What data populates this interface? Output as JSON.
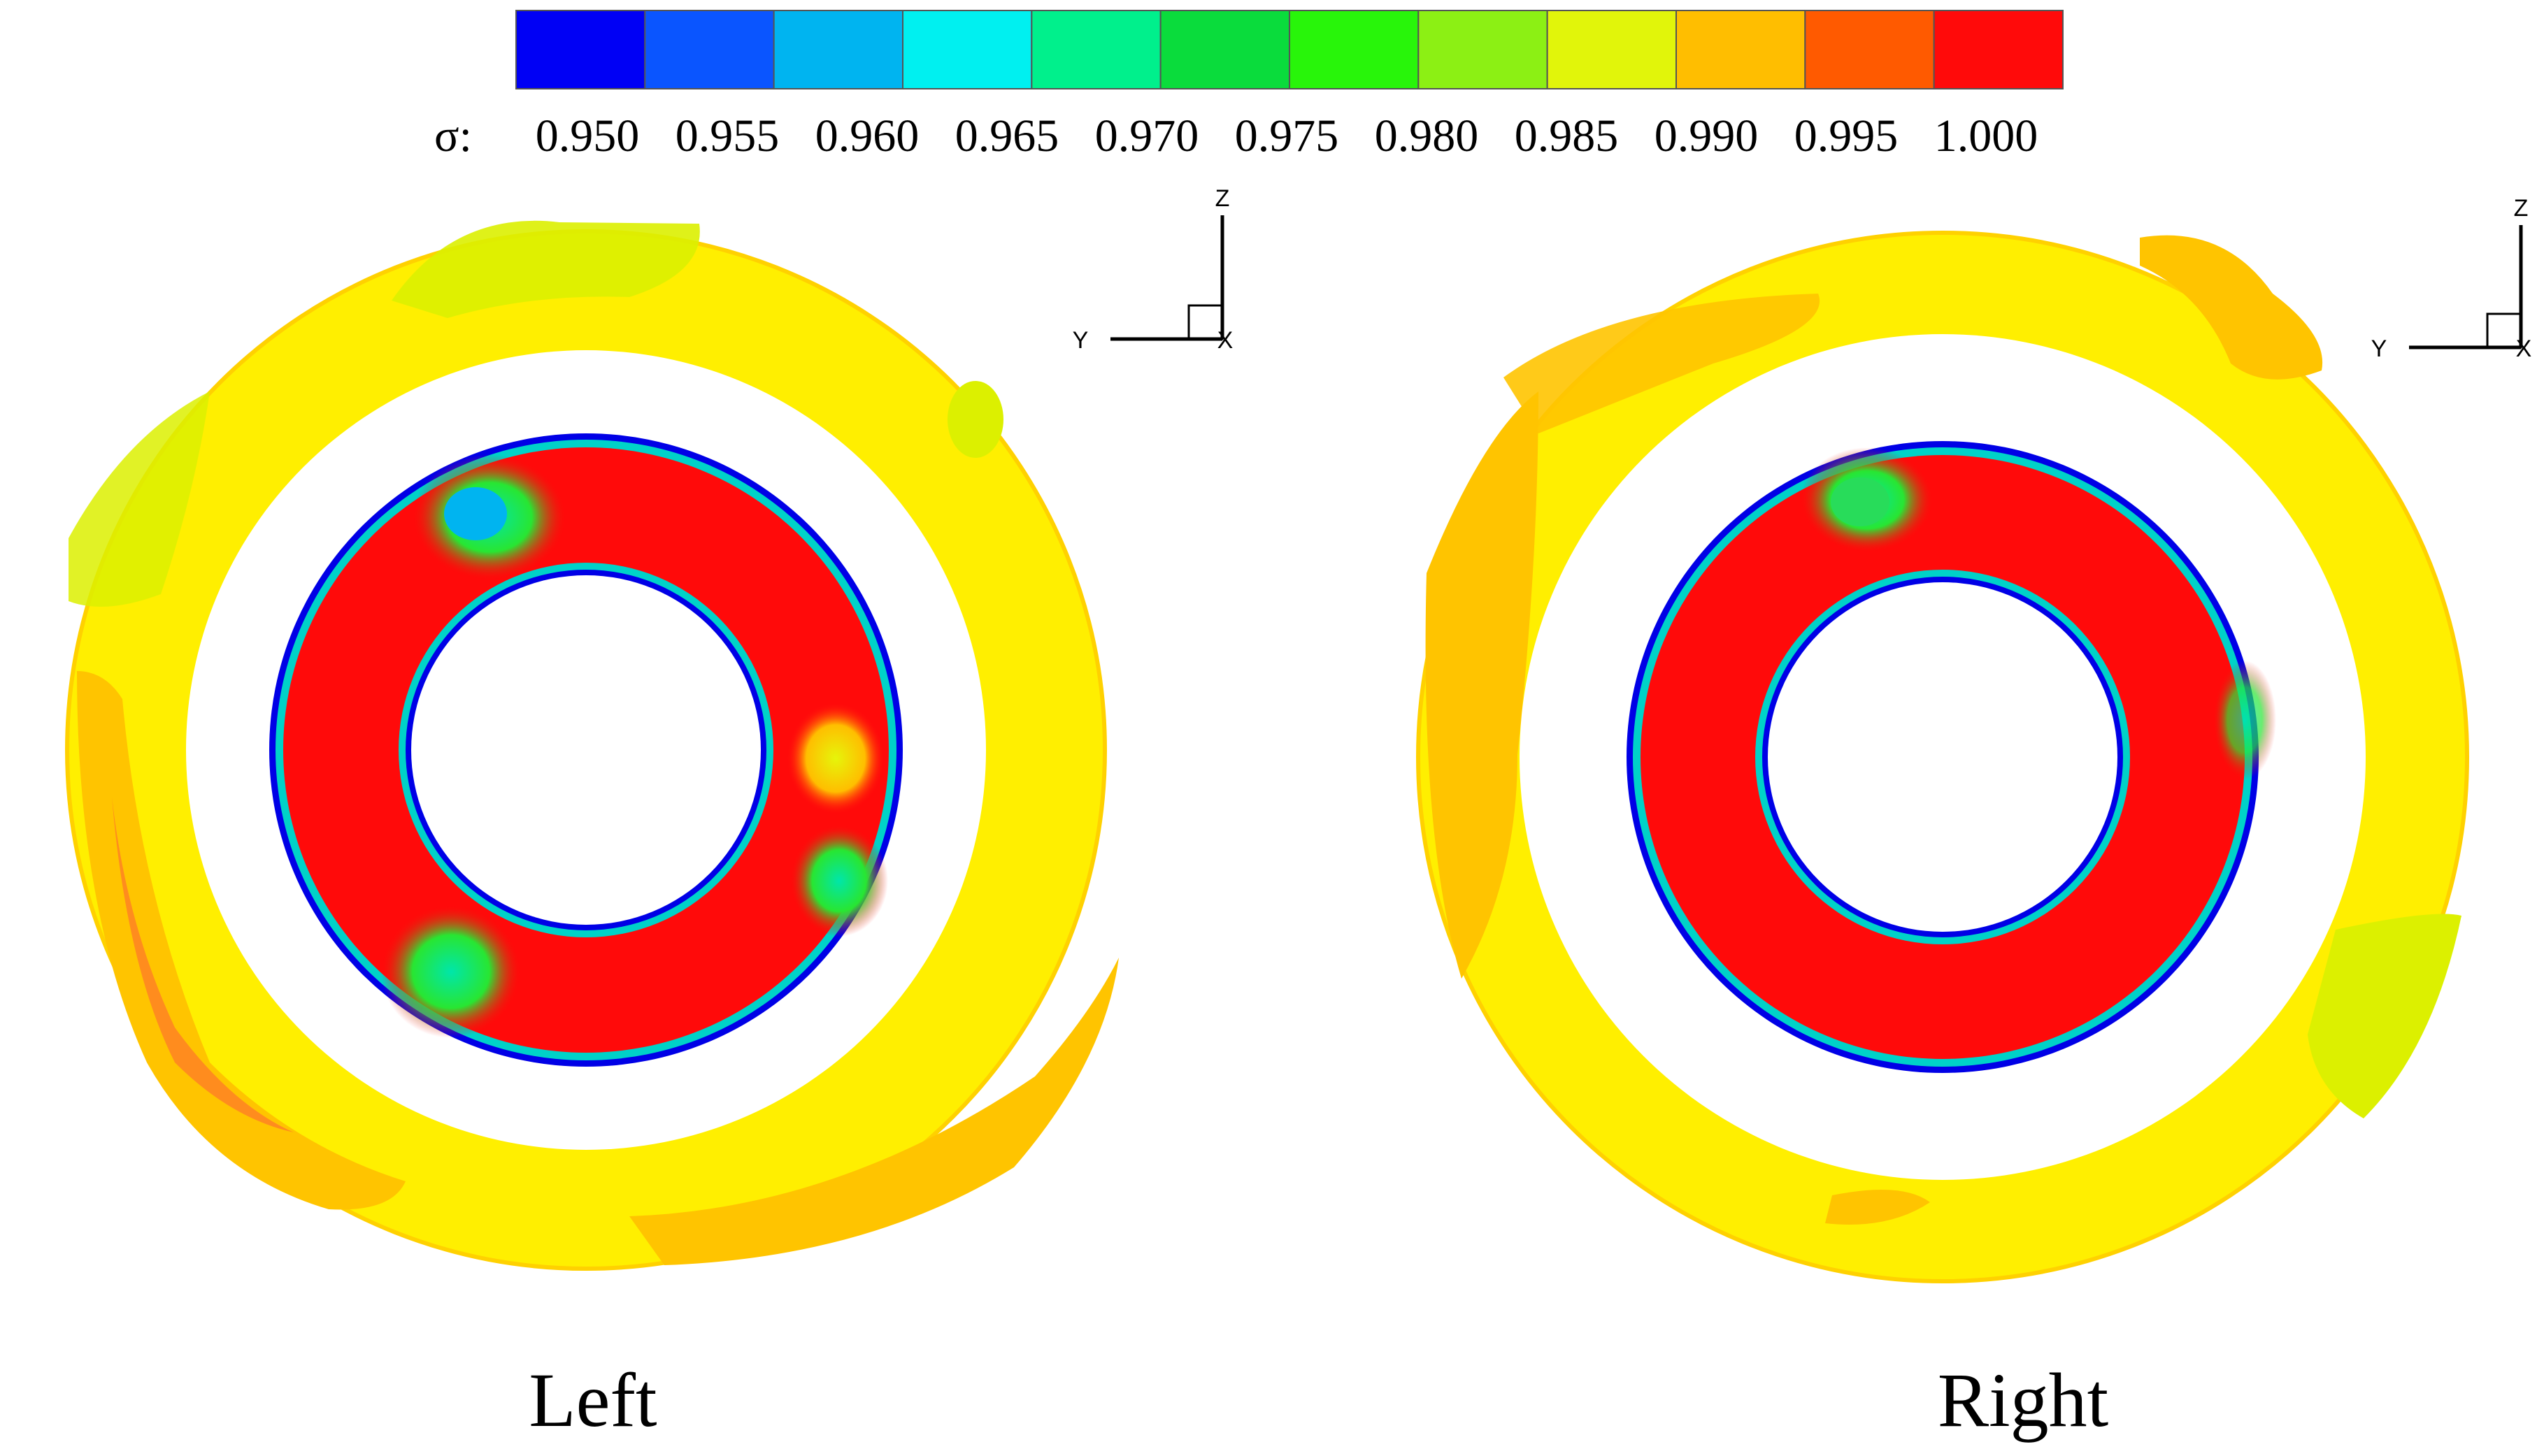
{
  "colorbar": {
    "variable_label": "σ:",
    "tick_labels": [
      "0.950",
      "0.955",
      "0.960",
      "0.965",
      "0.970",
      "0.975",
      "0.980",
      "0.985",
      "0.990",
      "0.995",
      "1.000"
    ],
    "colors": [
      "#0000f5",
      "#0a55ff",
      "#00b4f0",
      "#00f0f0",
      "#00f08c",
      "#0adc3c",
      "#28f50a",
      "#8cf014",
      "#e1f50a",
      "#ffbe00",
      "#ff5a00",
      "#ff0a0a"
    ]
  },
  "panels": [
    {
      "caption": "Left",
      "axis_labels": {
        "z": "Z",
        "y": "Y",
        "x": "X"
      }
    },
    {
      "caption": "Right",
      "axis_labels": {
        "z": "Z",
        "y": "Y",
        "x": "X"
      }
    }
  ],
  "field_colors": {
    "outer_ring": "#ffef00",
    "outer_ring_edge": "#ffd100",
    "outer_patch_light": "#dcf000",
    "outer_patch_dark": "#ffc400",
    "outer_patch_hot": "#ff8c1e",
    "inner_ring": "#ff0a0a",
    "inner_edge": "#0000e6"
  }
}
